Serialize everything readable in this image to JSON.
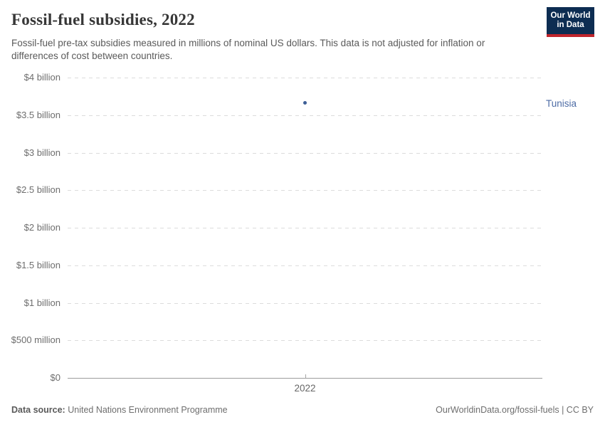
{
  "header": {
    "title": "Fossil-fuel subsidies, 2022",
    "subtitle": "Fossil-fuel pre-tax subsidies measured in millions of nominal US dollars. This data is not adjusted for inflation or differences of cost between countries.",
    "logo": {
      "line1": "Our World",
      "line2": "in Data",
      "bg_color": "#0d2d52",
      "accent_color": "#c0252c"
    }
  },
  "chart_data": {
    "type": "scatter",
    "title": "Fossil-fuel subsidies, 2022",
    "unit": "millions of nominal US dollars",
    "xlabel": "",
    "ylabel": "",
    "ylim": [
      0,
      4000
    ],
    "grid": true,
    "series": [
      {
        "name": "Tunisia",
        "x": 2022,
        "y": 3660,
        "y_display": "$3.66 billion",
        "color": "#3d5f96",
        "label_color": "#4c6ba5"
      }
    ],
    "yticks": [
      {
        "value": 0,
        "label": "$0"
      },
      {
        "value": 500,
        "label": "$500 million"
      },
      {
        "value": 1000,
        "label": "$1 billion"
      },
      {
        "value": 1500,
        "label": "$1.5 billion"
      },
      {
        "value": 2000,
        "label": "$2 billion"
      },
      {
        "value": 2500,
        "label": "$2.5 billion"
      },
      {
        "value": 3000,
        "label": "$3 billion"
      },
      {
        "value": 3500,
        "label": "$3.5 billion"
      },
      {
        "value": 4000,
        "label": "$4 billion"
      }
    ],
    "xticks": [
      {
        "value": 2022,
        "label": "2022"
      }
    ],
    "legend_position": "right-annotation"
  },
  "footer": {
    "source_label": "Data source:",
    "source_value": "United Nations Environment Programme",
    "attribution": "OurWorldinData.org/fossil-fuels | CC BY"
  }
}
